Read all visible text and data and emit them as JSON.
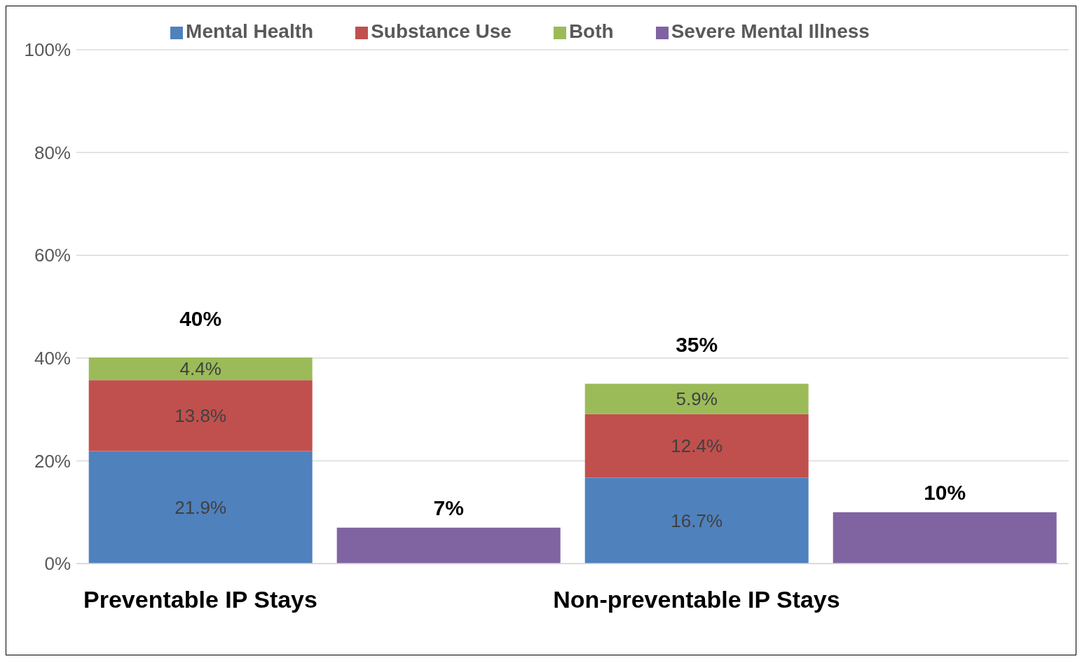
{
  "chart_data": {
    "type": "bar",
    "stacked": true,
    "legend": "top",
    "grid": "y",
    "categories": [
      "Preventable IP Stays",
      null,
      "Non-preventable IP Stays",
      null
    ],
    "series": [
      {
        "name": "Mental Health",
        "color": "#4f81bd",
        "values": [
          21.9,
          null,
          16.7,
          null
        ],
        "value_labels": [
          "21.9%",
          null,
          "16.7%",
          null
        ]
      },
      {
        "name": "Substance Use",
        "color": "#c0504d",
        "values": [
          13.8,
          null,
          12.4,
          null
        ],
        "value_labels": [
          "13.8%",
          null,
          "12.4%",
          null
        ]
      },
      {
        "name": "Both",
        "color": "#9bbb59",
        "values": [
          4.4,
          null,
          5.9,
          null
        ],
        "value_labels": [
          "4.4%",
          null,
          "5.9%",
          null
        ]
      },
      {
        "name": "Severe Mental Illness",
        "color": "#8064a2",
        "values": [
          null,
          7,
          null,
          10
        ],
        "value_labels": [
          null,
          "7%",
          null,
          "10%"
        ]
      }
    ],
    "totals": [
      "40%",
      null,
      "35%",
      null
    ],
    "ylim": [
      0,
      100
    ],
    "yticks": [
      {
        "value": 0,
        "label": "0%"
      },
      {
        "value": 20,
        "label": "20%"
      },
      {
        "value": 40,
        "label": "40%"
      },
      {
        "value": 60,
        "label": "60%"
      },
      {
        "value": 80,
        "label": "80%"
      },
      {
        "value": 100,
        "label": "100%"
      }
    ]
  }
}
